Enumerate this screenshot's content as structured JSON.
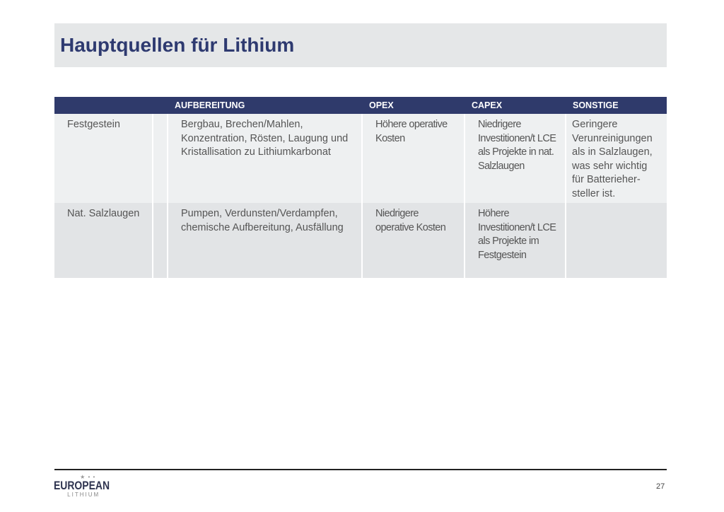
{
  "title": "Hauptquellen für Lithium",
  "table": {
    "headers": [
      "",
      "",
      "AUFBEREITUNG",
      "OPEX",
      "CAPEX",
      "SONSTIGE"
    ],
    "rows": [
      {
        "source": "Festgestein",
        "aufbereitung": "Bergbau, Brechen/Mahlen, Konzentration, Rösten, Laugung und Kristallisation zu Lithiumkarbonat",
        "opex": "Höhere operative Kosten",
        "capex": "Niedrigere Investitionen/t LCE als Projekte in nat. Salzlaugen",
        "sonstige": "Geringere Verunreinigungen als in Salzlaugen, was sehr wichtig für Batterieher-steller ist."
      },
      {
        "source": "Nat. Salzlaugen",
        "aufbereitung": "Pumpen, Verdunsten/Verdampfen, chemische Aufbereitung, Ausfällung",
        "opex": "Niedrigere operative Kosten",
        "capex": "Höhere Investitionen/t LCE als Projekte im Festgestein",
        "sonstige": ""
      }
    ]
  },
  "footer": {
    "logo_text": "EUROPEAN",
    "logo_sub": "LITHIUM",
    "page_number": "27"
  },
  "colors": {
    "header": "#2f3a6b",
    "title": "#2e3a70"
  }
}
